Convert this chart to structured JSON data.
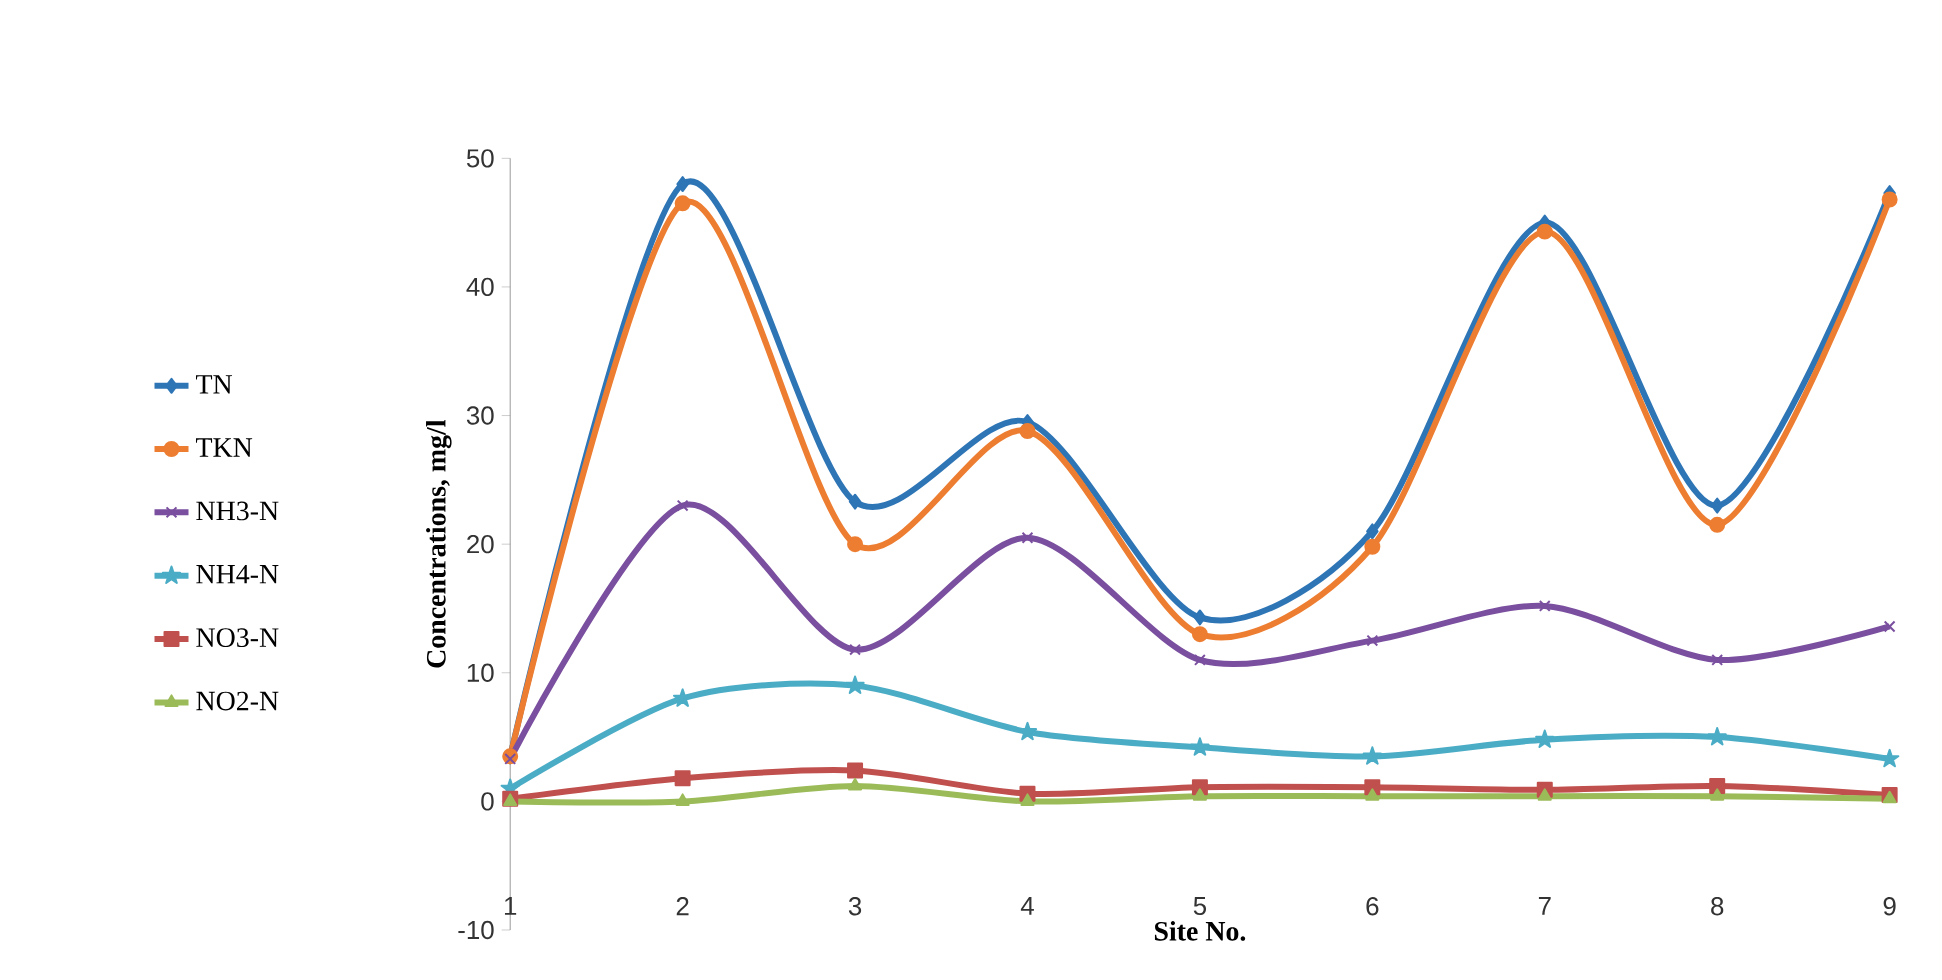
{
  "chart_data": {
    "type": "line",
    "xlabel": "Site No.",
    "ylabel": "Concentrations, mg/l",
    "categories": [
      "1",
      "2",
      "3",
      "4",
      "5",
      "6",
      "7",
      "8",
      "9"
    ],
    "series": [
      {
        "name": "TN",
        "color": "#2e75b6",
        "marker": "diamond",
        "values": [
          3.5,
          48,
          23.3,
          29.5,
          14.3,
          21,
          45,
          23,
          47.3
        ]
      },
      {
        "name": "TKN",
        "color": "#ed7d31",
        "marker": "circle",
        "values": [
          3.5,
          46.5,
          20,
          28.8,
          13,
          19.8,
          44.3,
          21.5,
          46.8
        ]
      },
      {
        "name": "NH3-N",
        "color": "#7a4f9f",
        "marker": "cross",
        "values": [
          3.3,
          23,
          11.8,
          20.5,
          11,
          12.5,
          15.2,
          11,
          13.6
        ]
      },
      {
        "name": "NH4-N",
        "color": "#4bacc6",
        "marker": "star",
        "values": [
          1,
          8,
          9,
          5.4,
          4.2,
          3.5,
          4.8,
          5,
          3.3
        ]
      },
      {
        "name": "NO3-N",
        "color": "#c0504d",
        "marker": "square",
        "values": [
          0.2,
          1.8,
          2.4,
          0.6,
          1.1,
          1.1,
          0.9,
          1.2,
          0.5
        ]
      },
      {
        "name": "NO2-N",
        "color": "#9bbb59",
        "marker": "triangle",
        "values": [
          0,
          0,
          1.2,
          0,
          0.4,
          0.4,
          0.4,
          0.4,
          0.2
        ]
      }
    ],
    "ylim": [
      -10,
      50
    ],
    "yticks": [
      -10,
      0,
      10,
      20,
      30,
      40,
      50
    ],
    "grid": false,
    "legend": "left",
    "line_style": "solid"
  }
}
